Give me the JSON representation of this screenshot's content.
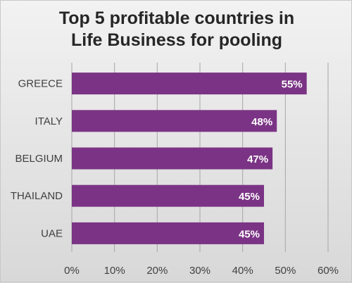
{
  "chart_data": {
    "type": "bar",
    "orientation": "horizontal",
    "title_lines": [
      "Top 5 profitable countries in",
      "Life Business for pooling"
    ],
    "categories": [
      "GREECE",
      "ITALY",
      "BELGIUM",
      "THAILAND",
      "UAE"
    ],
    "values": [
      55,
      48,
      47,
      45,
      45
    ],
    "data_labels": [
      "55%",
      "48%",
      "47%",
      "45%",
      "45%"
    ],
    "xlim": [
      0,
      60
    ],
    "x_ticks": [
      0,
      10,
      20,
      30,
      40,
      50,
      60
    ],
    "x_tick_labels": [
      "0%",
      "10%",
      "20%",
      "30%",
      "40%",
      "50%",
      "60%"
    ],
    "grid": true,
    "legend": "none",
    "colors": {
      "bar": "#7b3485",
      "grid": "#a6a6a6",
      "text": "#404040",
      "title": "#262626",
      "data_label": "#ffffff"
    }
  }
}
